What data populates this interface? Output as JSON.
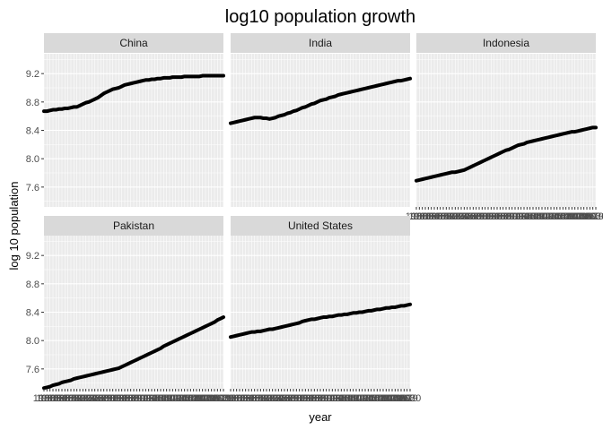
{
  "chart_data": {
    "type": "line",
    "title": "log10 population growth",
    "xlabel": "year",
    "ylabel": "log 10 population",
    "ylim": [
      7.32,
      9.48
    ],
    "y_ticks": [
      "7.6",
      "8.0",
      "8.4",
      "8.8",
      "9.2"
    ],
    "x": [
      1960,
      1961,
      1962,
      1963,
      1964,
      1965,
      1966,
      1967,
      1968,
      1969,
      1970,
      1971,
      1972,
      1973,
      1974,
      1975,
      1976,
      1977,
      1978,
      1979,
      1980,
      1981,
      1982,
      1983,
      1984,
      1985,
      1986,
      1987,
      1988,
      1989,
      1990,
      1991,
      1992,
      1993,
      1994,
      1995,
      1996,
      1997,
      1998,
      1999,
      2000,
      2001,
      2002,
      2003,
      2004,
      2005,
      2006,
      2007,
      2008,
      2009,
      2010,
      2011,
      2012,
      2013,
      2014,
      2015,
      2016,
      2017,
      2018,
      2019,
      2020
    ],
    "grid": true,
    "legend": "none",
    "layout": "facet wrap, 3 columns",
    "series": [
      {
        "name": "China",
        "values": [
          8.67,
          8.67,
          8.68,
          8.69,
          8.69,
          8.7,
          8.7,
          8.71,
          8.71,
          8.72,
          8.73,
          8.73,
          8.75,
          8.77,
          8.79,
          8.8,
          8.82,
          8.84,
          8.86,
          8.89,
          8.92,
          8.94,
          8.96,
          8.98,
          8.99,
          9.0,
          9.02,
          9.04,
          9.05,
          9.06,
          9.07,
          9.08,
          9.09,
          9.1,
          9.11,
          9.11,
          9.12,
          9.12,
          9.13,
          9.13,
          9.14,
          9.14,
          9.14,
          9.15,
          9.15,
          9.15,
          9.15,
          9.16,
          9.16,
          9.16,
          9.16,
          9.16,
          9.16,
          9.17,
          9.17,
          9.17,
          9.17,
          9.17,
          9.17,
          9.17,
          9.17
        ]
      },
      {
        "name": "India",
        "values": [
          8.5,
          8.51,
          8.52,
          8.53,
          8.54,
          8.55,
          8.56,
          8.57,
          8.58,
          8.58,
          8.58,
          8.57,
          8.57,
          8.56,
          8.57,
          8.58,
          8.6,
          8.61,
          8.62,
          8.64,
          8.65,
          8.67,
          8.68,
          8.7,
          8.72,
          8.73,
          8.75,
          8.77,
          8.78,
          8.8,
          8.82,
          8.83,
          8.84,
          8.86,
          8.87,
          8.88,
          8.9,
          8.91,
          8.92,
          8.93,
          8.94,
          8.95,
          8.96,
          8.97,
          8.98,
          8.99,
          9.0,
          9.01,
          9.02,
          9.03,
          9.04,
          9.05,
          9.06,
          9.07,
          9.08,
          9.09,
          9.1,
          9.1,
          9.11,
          9.12,
          9.13
        ]
      },
      {
        "name": "Indonesia",
        "values": [
          7.69,
          7.7,
          7.71,
          7.72,
          7.73,
          7.74,
          7.75,
          7.76,
          7.77,
          7.78,
          7.79,
          7.8,
          7.81,
          7.81,
          7.82,
          7.83,
          7.84,
          7.86,
          7.88,
          7.9,
          7.92,
          7.94,
          7.96,
          7.98,
          8.0,
          8.02,
          8.04,
          8.06,
          8.08,
          8.1,
          8.12,
          8.13,
          8.15,
          8.17,
          8.19,
          8.2,
          8.21,
          8.23,
          8.24,
          8.25,
          8.26,
          8.27,
          8.28,
          8.29,
          8.3,
          8.31,
          8.32,
          8.33,
          8.34,
          8.35,
          8.36,
          8.37,
          8.38,
          8.38,
          8.39,
          8.4,
          8.41,
          8.42,
          8.43,
          8.44,
          8.44
        ]
      },
      {
        "name": "Pakistan",
        "values": [
          7.33,
          7.34,
          7.35,
          7.37,
          7.38,
          7.39,
          7.41,
          7.42,
          7.43,
          7.44,
          7.46,
          7.47,
          7.48,
          7.49,
          7.5,
          7.51,
          7.52,
          7.53,
          7.54,
          7.55,
          7.56,
          7.57,
          7.58,
          7.59,
          7.6,
          7.61,
          7.63,
          7.65,
          7.67,
          7.69,
          7.71,
          7.73,
          7.75,
          7.77,
          7.79,
          7.81,
          7.83,
          7.85,
          7.87,
          7.89,
          7.92,
          7.94,
          7.96,
          7.98,
          8.0,
          8.02,
          8.04,
          8.06,
          8.08,
          8.1,
          8.12,
          8.14,
          8.16,
          8.18,
          8.2,
          8.22,
          8.24,
          8.26,
          8.29,
          8.31,
          8.33
        ]
      },
      {
        "name": "United States",
        "values": [
          8.05,
          8.06,
          8.07,
          8.08,
          8.09,
          8.1,
          8.11,
          8.12,
          8.12,
          8.13,
          8.13,
          8.14,
          8.15,
          8.16,
          8.16,
          8.17,
          8.18,
          8.19,
          8.2,
          8.21,
          8.22,
          8.23,
          8.24,
          8.25,
          8.27,
          8.28,
          8.29,
          8.3,
          8.3,
          8.31,
          8.32,
          8.33,
          8.33,
          8.34,
          8.34,
          8.35,
          8.36,
          8.36,
          8.37,
          8.37,
          8.38,
          8.39,
          8.39,
          8.4,
          8.4,
          8.41,
          8.42,
          8.42,
          8.43,
          8.44,
          8.44,
          8.45,
          8.46,
          8.46,
          8.47,
          8.47,
          8.48,
          8.49,
          8.49,
          8.5,
          8.51
        ]
      }
    ],
    "colors": {
      "line": "#000000",
      "panel_bg": "#ebebeb",
      "grid_major": "#ffffff",
      "strip_bg": "#d9d9d9"
    }
  }
}
